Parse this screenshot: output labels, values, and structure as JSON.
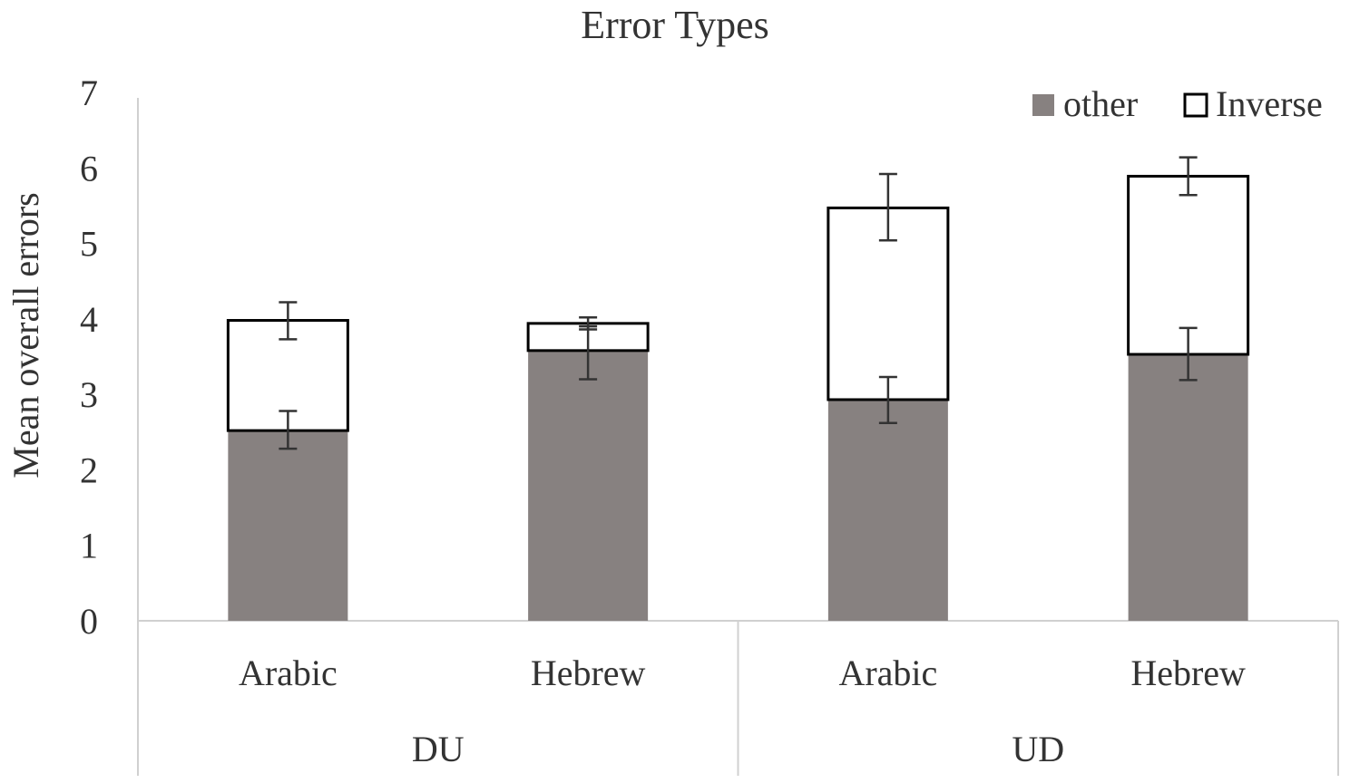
{
  "chart_data": {
    "type": "bar",
    "stacked": true,
    "title": "Error Types",
    "ylabel": "Mean overall errors",
    "xlabel": "",
    "ylim": [
      0,
      7
    ],
    "yticks": [
      0,
      1,
      2,
      3,
      4,
      5,
      6,
      7
    ],
    "groups": [
      {
        "label": "DU",
        "categories": [
          "Arabic",
          "Hebrew"
        ]
      },
      {
        "label": "UD",
        "categories": [
          "Arabic",
          "Hebrew"
        ]
      }
    ],
    "categories": [
      "Arabic",
      "Hebrew",
      "Arabic",
      "Hebrew"
    ],
    "series": [
      {
        "name": "other",
        "color": "#878180",
        "values": [
          2.52,
          3.58,
          2.93,
          3.53
        ],
        "error_low": [
          2.28,
          3.2,
          2.62,
          3.19
        ],
        "error_high": [
          2.78,
          3.9,
          3.23,
          3.88
        ]
      },
      {
        "name": "Inverse",
        "color": "#ffffff",
        "stroke": "#000000",
        "values": [
          1.46,
          0.36,
          2.54,
          2.36
        ],
        "error_low": [
          3.73,
          3.86,
          5.04,
          5.64
        ],
        "error_high": [
          4.22,
          4.02,
          5.92,
          6.14
        ]
      }
    ],
    "legend": "top-right",
    "grid": false
  }
}
